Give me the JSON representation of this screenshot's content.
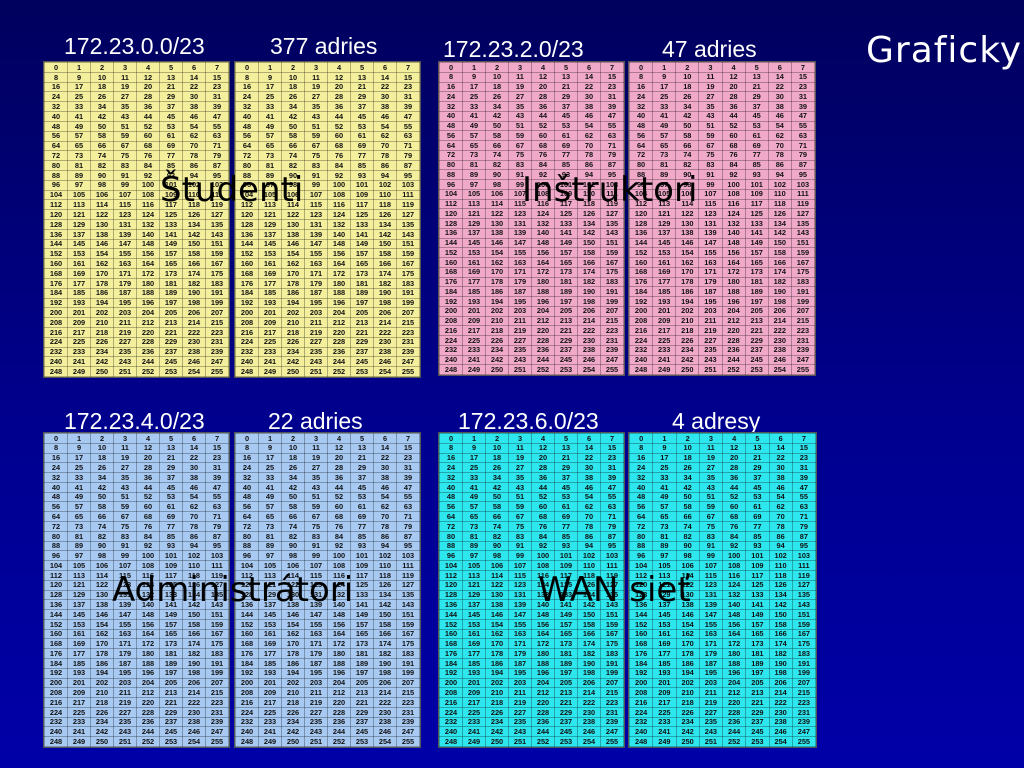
{
  "slide": {
    "title": "Graficky",
    "blocks": [
      {
        "network": "172.23.0.0/23",
        "hosts": "377  adries",
        "overlay": "Študenti",
        "color": "#f4ef9c"
      },
      {
        "network": "172.23.2.0/23",
        "hosts": "47 adries",
        "overlay": "Inštruktori",
        "color": "#f1a9c9"
      },
      {
        "network": "172.23.4.0/23",
        "hosts": "22 adries",
        "overlay": "Administrátori",
        "color": "#a7c9f2"
      },
      {
        "network": "172.23.6.0/23",
        "hosts": "4 adresy",
        "overlay": "WAN sieť",
        "color": "#2de6ee"
      }
    ],
    "table_rows": [
      [
        "0",
        "1",
        "2",
        "3",
        "4",
        "5",
        "6",
        "7"
      ],
      [
        "8",
        "9",
        "10",
        "11",
        "12",
        "13",
        "14",
        "15"
      ],
      [
        "16",
        "17",
        "18",
        "19",
        "20",
        "21",
        "22",
        "23"
      ],
      [
        "24",
        "25",
        "26",
        "27",
        "28",
        "29",
        "30",
        "31"
      ],
      [
        "32",
        "33",
        "34",
        "35",
        "36",
        "37",
        "38",
        "39"
      ],
      [
        "40",
        "41",
        "42",
        "43",
        "44",
        "45",
        "46",
        "47"
      ],
      [
        "48",
        "49",
        "50",
        "51",
        "52",
        "53",
        "54",
        "55"
      ],
      [
        "56",
        "57",
        "58",
        "59",
        "60",
        "61",
        "62",
        "63"
      ],
      [
        "64",
        "65",
        "66",
        "67",
        "68",
        "69",
        "70",
        "71"
      ],
      [
        "72",
        "73",
        "74",
        "75",
        "76",
        "77",
        "78",
        "79"
      ],
      [
        "80",
        "81",
        "82",
        "83",
        "84",
        "85",
        "86",
        "87"
      ],
      [
        "88",
        "89",
        "90",
        "91",
        "92",
        "93",
        "94",
        "95"
      ],
      [
        "96",
        "97",
        "98",
        "99",
        "100",
        "101",
        "102",
        "103"
      ],
      [
        "104",
        "105",
        "106",
        "107",
        "108",
        "109",
        "110",
        "111"
      ],
      [
        "112",
        "113",
        "114",
        "115",
        "116",
        "117",
        "118",
        "119"
      ],
      [
        "120",
        "121",
        "122",
        "123",
        "124",
        "125",
        "126",
        "127"
      ],
      [
        "128",
        "129",
        "130",
        "131",
        "132",
        "133",
        "134",
        "135"
      ],
      [
        "136",
        "137",
        "138",
        "139",
        "140",
        "141",
        "142",
        "143"
      ],
      [
        "144",
        "145",
        "146",
        "147",
        "148",
        "149",
        "150",
        "151"
      ],
      [
        "152",
        "153",
        "154",
        "155",
        "156",
        "157",
        "158",
        "159"
      ],
      [
        "160",
        "161",
        "162",
        "163",
        "164",
        "165",
        "166",
        "167"
      ],
      [
        "168",
        "169",
        "170",
        "171",
        "172",
        "173",
        "174",
        "175"
      ],
      [
        "176",
        "177",
        "178",
        "179",
        "180",
        "181",
        "182",
        "183"
      ],
      [
        "184",
        "185",
        "186",
        "187",
        "188",
        "189",
        "190",
        "191"
      ],
      [
        "192",
        "193",
        "194",
        "195",
        "196",
        "197",
        "198",
        "199"
      ],
      [
        "200",
        "201",
        "202",
        "203",
        "204",
        "205",
        "206",
        "207"
      ],
      [
        "208",
        "209",
        "210",
        "211",
        "212",
        "213",
        "214",
        "215"
      ],
      [
        "216",
        "217",
        "218",
        "219",
        "220",
        "221",
        "222",
        "223"
      ],
      [
        "224",
        "225",
        "226",
        "227",
        "228",
        "229",
        "230",
        "231"
      ],
      [
        "232",
        "233",
        "234",
        "235",
        "236",
        "237",
        "238",
        "239"
      ],
      [
        "240",
        "241",
        "242",
        "243",
        "244",
        "245",
        "246",
        "247"
      ],
      [
        "248",
        "249",
        "250",
        "251",
        "252",
        "253",
        "254",
        "255"
      ]
    ]
  }
}
